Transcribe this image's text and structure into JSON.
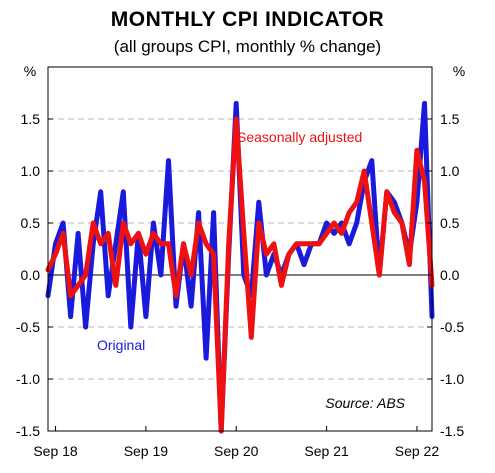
{
  "chart_data": {
    "type": "line",
    "title": "MONTHLY CPI INDICATOR",
    "subtitle": "(all groups CPI, monthly % change)",
    "ylabel_left": "%",
    "ylabel_right": "%",
    "ylim": [
      -1.5,
      2.0
    ],
    "yticks": [
      -1.5,
      -1.0,
      -0.5,
      0.0,
      0.5,
      1.0,
      1.5
    ],
    "ytick_labels": [
      "-1.5",
      "-1.0",
      "-0.5",
      "0.0",
      "0.5",
      "1.0",
      "1.5"
    ],
    "xlim": [
      "2018-08",
      "2022-11"
    ],
    "xticks": [
      "2018-09",
      "2019-09",
      "2020-09",
      "2021-09",
      "2022-09"
    ],
    "xtick_labels": [
      "Sep 18",
      "Sep 19",
      "Sep 20",
      "Sep 21",
      "Sep 22"
    ],
    "grid": "horizontal dashed",
    "source_note": "Source: ABS",
    "x": [
      "2018-08",
      "2018-09",
      "2018-10",
      "2018-11",
      "2018-12",
      "2019-01",
      "2019-02",
      "2019-03",
      "2019-04",
      "2019-05",
      "2019-06",
      "2019-07",
      "2019-08",
      "2019-09",
      "2019-10",
      "2019-11",
      "2019-12",
      "2020-01",
      "2020-02",
      "2020-03",
      "2020-04",
      "2020-05",
      "2020-06",
      "2020-07",
      "2020-08",
      "2020-09",
      "2020-10",
      "2020-11",
      "2020-12",
      "2021-01",
      "2021-02",
      "2021-03",
      "2021-04",
      "2021-05",
      "2021-06",
      "2021-07",
      "2021-08",
      "2021-09",
      "2021-10",
      "2021-11",
      "2021-12",
      "2022-01",
      "2022-02",
      "2022-03",
      "2022-04",
      "2022-05",
      "2022-06",
      "2022-07",
      "2022-08",
      "2022-09",
      "2022-10",
      "2022-11"
    ],
    "series": [
      {
        "name": "Original",
        "color": "#1a1adc",
        "values": [
          -0.2,
          0.3,
          0.5,
          -0.4,
          0.4,
          -0.5,
          0.3,
          0.8,
          -0.2,
          0.3,
          0.8,
          -0.5,
          0.4,
          -0.4,
          0.5,
          0.0,
          1.1,
          -0.3,
          0.3,
          -0.3,
          0.6,
          -0.8,
          0.6,
          -1.5,
          0.2,
          1.65,
          0.0,
          -0.2,
          0.7,
          0.0,
          0.2,
          0.0,
          0.2,
          0.3,
          0.1,
          0.3,
          0.3,
          0.5,
          0.4,
          0.5,
          0.3,
          0.5,
          0.9,
          1.1,
          0.0,
          0.8,
          0.7,
          0.5,
          0.2,
          0.7,
          1.65,
          -0.4
        ]
      },
      {
        "name": "Seasonally adjusted",
        "color": "#ee1111",
        "values": [
          0.05,
          0.2,
          0.4,
          -0.2,
          -0.1,
          0.0,
          0.5,
          0.3,
          0.4,
          -0.1,
          0.5,
          0.3,
          0.4,
          0.2,
          0.4,
          0.3,
          0.3,
          -0.2,
          0.3,
          0.0,
          0.5,
          0.3,
          0.2,
          -1.5,
          0.3,
          1.5,
          0.4,
          -0.6,
          0.5,
          0.2,
          0.3,
          -0.1,
          0.2,
          0.3,
          0.3,
          0.3,
          0.3,
          0.4,
          0.5,
          0.4,
          0.6,
          0.7,
          1.0,
          0.5,
          0.0,
          0.8,
          0.6,
          0.5,
          0.1,
          1.2,
          0.9,
          -0.1
        ]
      }
    ],
    "annotations": [
      {
        "text": "Seasonally adjusted",
        "color": "#ee1111"
      },
      {
        "text": "Original",
        "color": "#1a1adc"
      }
    ]
  }
}
